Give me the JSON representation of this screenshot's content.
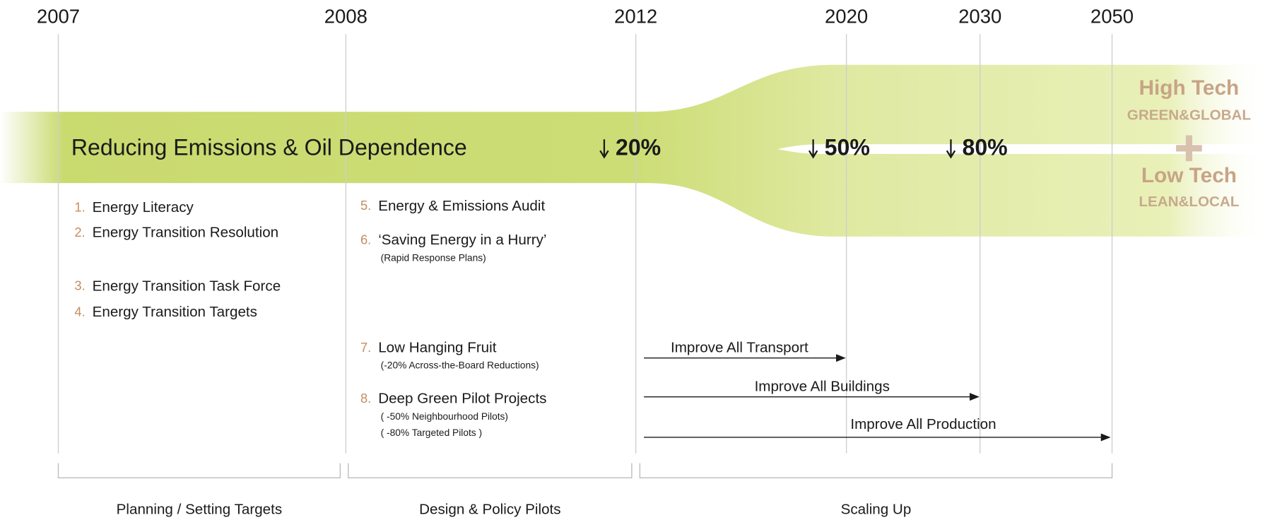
{
  "years": [
    "2007",
    "2008",
    "2012",
    "2020",
    "2030",
    "2050"
  ],
  "band": {
    "title": "Reducing Emissions & Oil Dependence",
    "targets": [
      "20%",
      "50%",
      "80%"
    ]
  },
  "outcomes": [
    {
      "title": "High Tech",
      "subtitle": "GREEN&GLOBAL"
    },
    {
      "title": "Low Tech",
      "subtitle": "LEAN&LOCAL"
    }
  ],
  "steps": [
    {
      "number": "1.",
      "label": "Energy Literacy"
    },
    {
      "number": "2.",
      "label": "Energy Transition Resolution"
    },
    {
      "number": "3.",
      "label": "Energy Transition Task Force"
    },
    {
      "number": "4.",
      "label": "Energy Transition Targets"
    },
    {
      "number": "5.",
      "label": "Energy & Emissions Audit"
    },
    {
      "number": "6.",
      "label": "‘Saving Energy in a Hurry’",
      "notes": [
        "(Rapid Response Plans)"
      ]
    },
    {
      "number": "7.",
      "label": "Low Hanging Fruit",
      "notes": [
        "(-20% Across-the-Board Reductions)"
      ]
    },
    {
      "number": "8.",
      "label": "Deep Green Pilot Projects",
      "notes": [
        "( -50% Neighbourhood Pilots)",
        "( -80% Targeted Pilots )"
      ]
    }
  ],
  "arrows": [
    "Improve All Transport",
    "Improve All Buildings",
    "Improve All Production"
  ],
  "phases": [
    "Planning / Setting Targets",
    "Design & Policy Pilots",
    "Scaling Up"
  ]
}
